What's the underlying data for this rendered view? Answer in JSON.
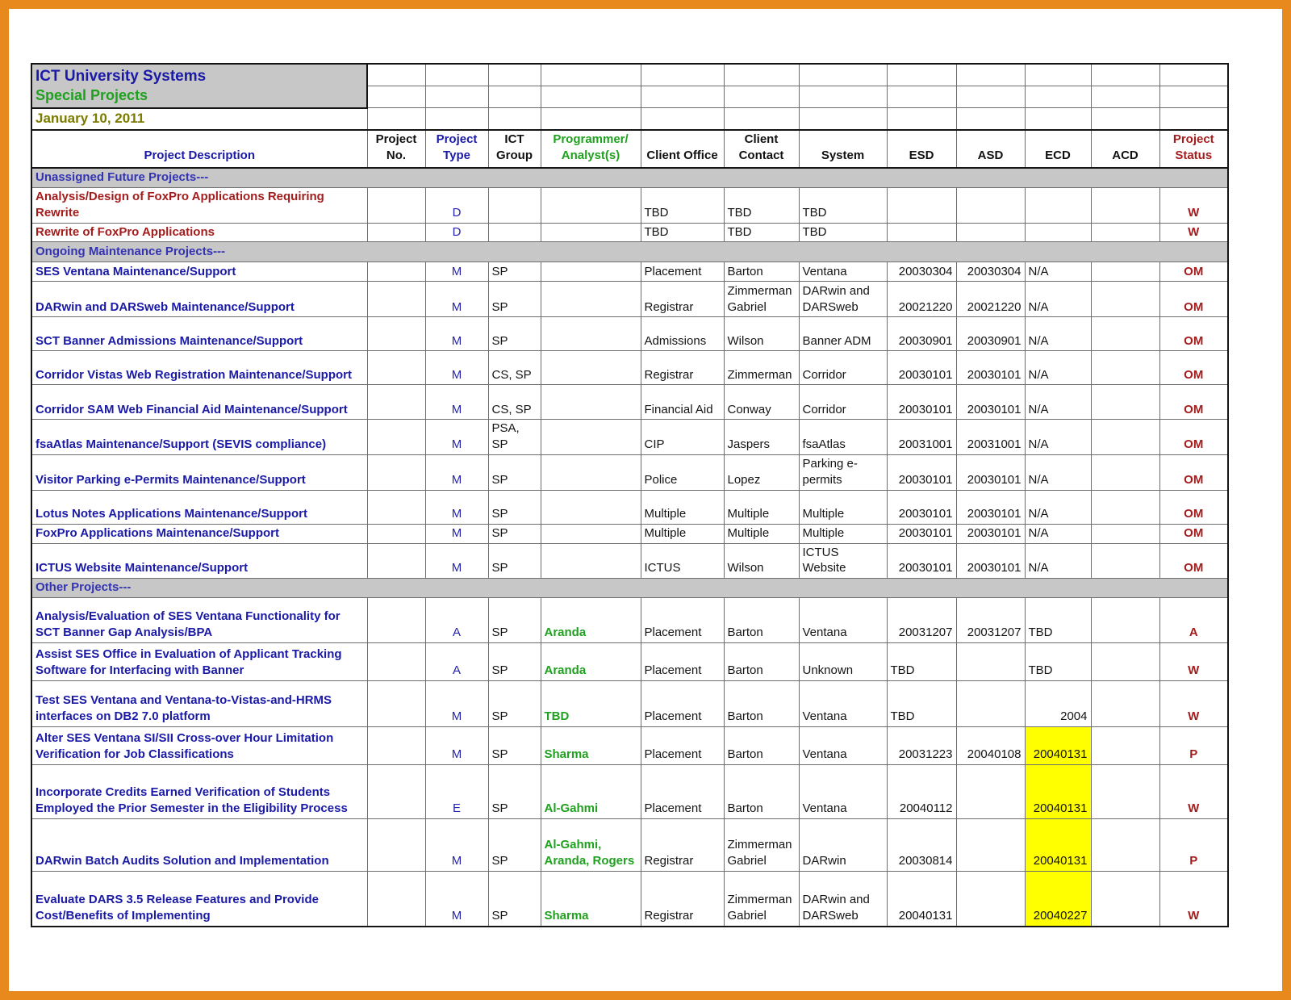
{
  "titles": {
    "title": "ICT University Systems",
    "subtitle": "Special Projects",
    "date": "January 10, 2011"
  },
  "colors": {
    "frame_orange": "#E8891D",
    "title_blue": "#1A1AA6",
    "subtitle_green": "#1FA11F",
    "date_olive": "#7B7B00",
    "section_bg_gray": "#C7C7C7",
    "status_red": "#A31D1D",
    "highlight_yellow": "#FFFF00"
  },
  "columns": [
    {
      "id": "desc",
      "label": "Project Description",
      "color": "blue"
    },
    {
      "id": "no",
      "label": "Project\nNo.",
      "color": "black"
    },
    {
      "id": "type",
      "label": "Project\nType",
      "color": "blue"
    },
    {
      "id": "group",
      "label": "ICT\nGroup",
      "color": "black"
    },
    {
      "id": "prog",
      "label": "Programmer/\nAnalyst(s)",
      "color": "green"
    },
    {
      "id": "office",
      "label": "Client Office",
      "color": "black"
    },
    {
      "id": "contact",
      "label": "Client\nContact",
      "color": "black"
    },
    {
      "id": "system",
      "label": "System",
      "color": "black"
    },
    {
      "id": "esd",
      "label": "ESD",
      "color": "black"
    },
    {
      "id": "asd",
      "label": "ASD",
      "color": "black"
    },
    {
      "id": "ecd",
      "label": "ECD",
      "color": "black"
    },
    {
      "id": "acd",
      "label": "ACD",
      "color": "black"
    },
    {
      "id": "status",
      "label": "Project\nStatus",
      "color": "red"
    }
  ],
  "rows": [
    {
      "kind": "section",
      "label": "Unassigned Future Projects---"
    },
    {
      "kind": "data",
      "desc": "Analysis/Design of FoxPro Applications Requiring Rewrite",
      "desc_color": "red",
      "type": "D",
      "office": "TBD",
      "contact": "TBD",
      "system": "TBD",
      "status": "W"
    },
    {
      "kind": "data",
      "desc": "Rewrite of FoxPro Applications",
      "desc_color": "red",
      "type": "D",
      "office": "TBD",
      "contact": "TBD",
      "system": "TBD",
      "status": "W"
    },
    {
      "kind": "section",
      "label": "Ongoing Maintenance Projects---"
    },
    {
      "kind": "data",
      "desc": "SES Ventana Maintenance/Support",
      "desc_color": "blue",
      "type": "M",
      "group": "SP",
      "office": "Placement",
      "contact": "Barton",
      "system": "Ventana",
      "esd": "20030304",
      "asd": "20030304",
      "ecd": "N/A",
      "status": "OM"
    },
    {
      "kind": "data",
      "desc": "DARwin and DARSweb Maintenance/Support",
      "desc_color": "blue",
      "type": "M",
      "group": "SP",
      "office": "Registrar",
      "contact": "Zimmerman Gabriel",
      "system": "DARwin and DARSweb",
      "esd": "20021220",
      "asd": "20021220",
      "ecd": "N/A",
      "status": "OM"
    },
    {
      "kind": "data",
      "desc": "SCT Banner Admissions Maintenance/Support",
      "desc_color": "blue",
      "type": "M",
      "group": "SP",
      "office": "Admissions",
      "contact": "Wilson",
      "system": "Banner ADM",
      "esd": "20030901",
      "asd": "20030901",
      "ecd": "N/A",
      "status": "OM"
    },
    {
      "kind": "data",
      "desc": "Corridor Vistas Web Registration Maintenance/Support",
      "desc_color": "blue",
      "type": "M",
      "group": "CS, SP",
      "office": "Registrar",
      "contact": "Zimmerman",
      "system": "Corridor",
      "esd": "20030101",
      "asd": "20030101",
      "ecd": "N/A",
      "status": "OM"
    },
    {
      "kind": "data",
      "desc": "Corridor SAM Web Financial Aid Maintenance/Support",
      "desc_color": "blue",
      "type": "M",
      "group": "CS, SP",
      "office": "Financial Aid",
      "contact": "Conway",
      "system": "Corridor",
      "esd": "20030101",
      "asd": "20030101",
      "ecd": "N/A",
      "status": "OM"
    },
    {
      "kind": "data",
      "desc": "fsaAtlas Maintenance/Support (SEVIS compliance)",
      "desc_color": "blue",
      "type": "M",
      "group": "PSA, SP",
      "office": "CIP",
      "contact": "Jaspers",
      "system": "fsaAtlas",
      "esd": "20031001",
      "asd": "20031001",
      "ecd": "N/A",
      "status": "OM"
    },
    {
      "kind": "data",
      "desc": "Visitor Parking e-Permits Maintenance/Support",
      "desc_color": "blue",
      "type": "M",
      "group": "SP",
      "office": "Police",
      "contact": "Lopez",
      "system": "Parking e-permits",
      "esd": "20030101",
      "asd": "20030101",
      "ecd": "N/A",
      "status": "OM"
    },
    {
      "kind": "data",
      "desc": "Lotus Notes Applications Maintenance/Support",
      "desc_color": "blue",
      "type": "M",
      "group": "SP",
      "office": "Multiple",
      "contact": "Multiple",
      "system": "Multiple",
      "esd": "20030101",
      "asd": "20030101",
      "ecd": "N/A",
      "status": "OM"
    },
    {
      "kind": "data",
      "desc": "FoxPro Applications Maintenance/Support",
      "desc_color": "blue",
      "type": "M",
      "group": "SP",
      "office": "Multiple",
      "contact": "Multiple",
      "system": "Multiple",
      "esd": "20030101",
      "asd": "20030101",
      "ecd": "N/A",
      "status": "OM"
    },
    {
      "kind": "data",
      "desc": "ICTUS Website Maintenance/Support",
      "desc_color": "blue",
      "type": "M",
      "group": "SP",
      "office": "ICTUS",
      "contact": "Wilson",
      "system": "ICTUS Website",
      "esd": "20030101",
      "asd": "20030101",
      "ecd": "N/A",
      "status": "OM"
    },
    {
      "kind": "section",
      "label": "Other Projects---"
    },
    {
      "kind": "data",
      "desc": "Analysis/Evaluation of SES Ventana Functionality for SCT Banner Gap Analysis/BPA",
      "desc_color": "blue",
      "type": "A",
      "group": "SP",
      "prog": "Aranda",
      "office": "Placement",
      "contact": "Barton",
      "system": "Ventana",
      "esd": "20031207",
      "asd": "20031207",
      "ecd": "TBD",
      "status": "A"
    },
    {
      "kind": "data",
      "desc": "Assist SES Office in Evaluation of Applicant Tracking Software for Interfacing with Banner",
      "desc_color": "blue",
      "type": "A",
      "group": "SP",
      "prog": "Aranda",
      "office": "Placement",
      "contact": "Barton",
      "system": "Unknown",
      "esd": "TBD",
      "ecd": "TBD",
      "status": "W"
    },
    {
      "kind": "data",
      "desc": "Test SES Ventana and Ventana-to-Vistas-and-HRMS interfaces on DB2 7.0 platform",
      "desc_color": "blue",
      "type": "M",
      "group": "SP",
      "prog": "TBD",
      "office": "Placement",
      "contact": "Barton",
      "system": "Ventana",
      "esd": "TBD",
      "ecd": "2004",
      "status": "W"
    },
    {
      "kind": "data",
      "desc": "Alter SES Ventana SI/SII Cross-over Hour Limitation Verification for Job Classifications",
      "desc_color": "blue",
      "type": "M",
      "group": "SP",
      "prog": "Sharma",
      "office": "Placement",
      "contact": "Barton",
      "system": "Ventana",
      "esd": "20031223",
      "asd": "20040108",
      "ecd": "20040131",
      "ecd_yellow": true,
      "status": "P"
    },
    {
      "kind": "data",
      "desc": "Incorporate Credits Earned Verification of Students Employed the Prior Semester in the Eligibility Process",
      "desc_color": "blue",
      "type": "E",
      "group": "SP",
      "prog": "Al-Gahmi",
      "office": "Placement",
      "contact": "Barton",
      "system": "Ventana",
      "esd": "20040112",
      "ecd": "20040131",
      "ecd_yellow": true,
      "status": "W"
    },
    {
      "kind": "data",
      "desc": "DARwin Batch Audits Solution and Implementation",
      "desc_color": "blue",
      "type": "M",
      "group": "SP",
      "prog": "Al-Gahmi, Aranda, Rogers",
      "office": "Registrar",
      "contact": "Zimmerman Gabriel",
      "system": "DARwin",
      "esd": "20030814",
      "ecd": "20040131",
      "ecd_yellow": true,
      "status": "P"
    },
    {
      "kind": "data",
      "desc": "Evaluate DARS 3.5 Release Features and Provide Cost/Benefits of Implementing",
      "desc_color": "blue",
      "type": "M",
      "group": "SP",
      "prog": "Sharma",
      "office": "Registrar",
      "contact": "Zimmerman Gabriel",
      "system": "DARwin and DARSweb",
      "esd": "20040131",
      "ecd": "20040227",
      "ecd_yellow": true,
      "status": "W"
    }
  ]
}
